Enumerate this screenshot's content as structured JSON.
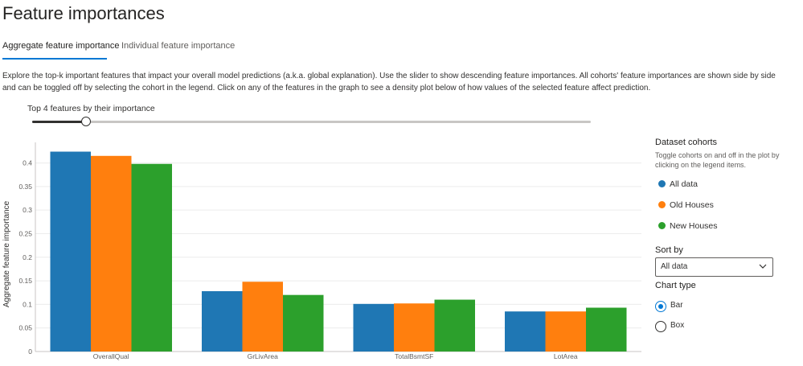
{
  "page_title": "Feature importances",
  "tabs": [
    {
      "label": "Aggregate feature importance",
      "active": true
    },
    {
      "label": "Individual feature importance",
      "active": false
    }
  ],
  "description": "Explore the top-k important features that impact your overall model predictions (a.k.a. global explanation). Use the slider to show descending feature importances. All cohorts' feature importances are shown side by side and can be toggled off by selecting the cohort in the legend. Click on any of the features in the graph to see a density plot below of how values of the selected feature affect prediction.",
  "slider": {
    "label": "Top 4 features by their importance",
    "value": 4
  },
  "sidebar": {
    "cohorts_title": "Dataset cohorts",
    "cohorts_subtitle": "Toggle cohorts on and off in the plot by clicking on the legend items.",
    "cohorts": [
      {
        "label": "All data",
        "color": "#1f77b4"
      },
      {
        "label": "Old Houses",
        "color": "#ff7f0e"
      },
      {
        "label": "New Houses",
        "color": "#2ca02c"
      }
    ],
    "sort_by_label": "Sort by",
    "sort_by_value": "All data",
    "chart_type_label": "Chart type",
    "chart_type_options": [
      {
        "label": "Bar",
        "checked": true
      },
      {
        "label": "Box",
        "checked": false
      }
    ]
  },
  "chart_data": {
    "type": "bar",
    "categories": [
      "OverallQual",
      "GrLivArea",
      "TotalBsmtSF",
      "LotArea"
    ],
    "series": [
      {
        "name": "All data",
        "color": "#1f77b4",
        "values": [
          0.424,
          0.128,
          0.101,
          0.085
        ]
      },
      {
        "name": "Old Houses",
        "color": "#ff7f0e",
        "values": [
          0.415,
          0.148,
          0.102,
          0.085
        ]
      },
      {
        "name": "New Houses",
        "color": "#2ca02c",
        "values": [
          0.398,
          0.12,
          0.11,
          0.093
        ]
      }
    ],
    "ylabel": "Aggregate feature importance",
    "ylim": [
      0,
      0.43
    ],
    "yticks": [
      "0",
      "0.05",
      "0.1",
      "0.15",
      "0.2",
      "0.25",
      "0.3",
      "0.35",
      "0.4"
    ],
    "grid": true
  }
}
